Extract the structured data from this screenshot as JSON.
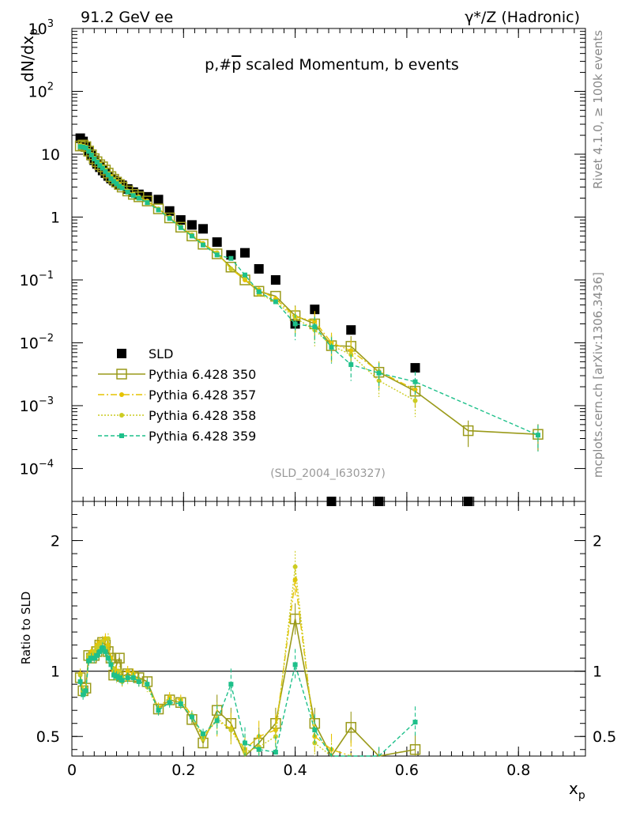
{
  "header": {
    "left": "91.2 GeV ee",
    "right": "γ*/Z (Hadronic)"
  },
  "side_labels": {
    "top": "Rivet 4.1.0, ≥ 100k events",
    "bottom": "mcplots.cern.ch [arXiv:1306.3436]"
  },
  "colors": {
    "SLD": "#000000",
    "p350": "#9a9a1a",
    "p357": "#e6c300",
    "p358": "#cccc22",
    "p359": "#1ec08a"
  },
  "chart_data": [
    {
      "type": "scatter",
      "panel": "main",
      "title_parts": [
        "p,#",
        "p",
        " scaled Momentum, b events"
      ],
      "ylabel": "dN/dx",
      "ylabel_sub": "p",
      "xlabel": "x",
      "xlabel_sub": "p",
      "yscale": "log",
      "xlim": [
        0,
        0.92
      ],
      "ylim": [
        3e-05,
        1000
      ],
      "xticks": [
        "0",
        "0.2",
        "0.4",
        "0.6",
        "0.8"
      ],
      "xtick_values": [
        0,
        0.2,
        0.4,
        0.6,
        0.8
      ],
      "yticks": [
        {
          "base": "10",
          "exp": "3"
        },
        {
          "base": "10",
          "exp": "2"
        },
        {
          "base": "10",
          "exp": ""
        },
        {
          "base": "1",
          "exp": ""
        },
        {
          "base": "10",
          "exp": "−1"
        },
        {
          "base": "10",
          "exp": "−2"
        },
        {
          "base": "10",
          "exp": "−3"
        },
        {
          "base": "10",
          "exp": "−4"
        }
      ],
      "ytick_values": [
        1000,
        100,
        10,
        1,
        0.1,
        0.01,
        0.001,
        0.0001
      ],
      "annotation": "(SLD_2004_I630327)",
      "legend": [
        "SLD",
        "Pythia 6.428 350",
        "Pythia 6.428 357",
        "Pythia 6.428 358",
        "Pythia 6.428 359"
      ],
      "legend_position": "lower-left",
      "series": [
        {
          "name": "SLD",
          "style": "data",
          "x": [
            0.015,
            0.02,
            0.025,
            0.03,
            0.035,
            0.04,
            0.045,
            0.05,
            0.055,
            0.06,
            0.065,
            0.07,
            0.075,
            0.08,
            0.085,
            0.09,
            0.1,
            0.11,
            0.12,
            0.135,
            0.155,
            0.175,
            0.195,
            0.215,
            0.235,
            0.26,
            0.285,
            0.31,
            0.335,
            0.365,
            0.4,
            0.435,
            0.465,
            0.5,
            0.55,
            0.615,
            0.71
          ],
          "y": [
            18,
            16,
            13,
            11,
            9.5,
            8,
            7,
            6.2,
            5.5,
            5,
            4.5,
            4.1,
            3.8,
            3.6,
            3.3,
            3.2,
            2.8,
            2.5,
            2.3,
            2.1,
            1.9,
            1.25,
            0.9,
            0.75,
            0.65,
            0.4,
            0.25,
            0.27,
            0.15,
            0.1,
            0.02,
            0.034,
            3e-05,
            0.016,
            3e-05,
            0.004,
            3e-05
          ]
        },
        {
          "name": "Pythia 6.428 350",
          "style": "solid",
          "x": [
            0.015,
            0.02,
            0.025,
            0.03,
            0.035,
            0.04,
            0.045,
            0.05,
            0.055,
            0.06,
            0.065,
            0.07,
            0.075,
            0.08,
            0.085,
            0.09,
            0.1,
            0.11,
            0.12,
            0.135,
            0.155,
            0.175,
            0.195,
            0.215,
            0.235,
            0.26,
            0.285,
            0.31,
            0.335,
            0.365,
            0.4,
            0.435,
            0.465,
            0.5,
            0.55,
            0.615,
            0.71,
            0.835
          ],
          "y": [
            13.5,
            14,
            13.2,
            11.2,
            9.8,
            8.5,
            7.6,
            6.8,
            6.3,
            5.6,
            5.0,
            4.4,
            4.0,
            3.6,
            3.3,
            3.0,
            2.6,
            2.3,
            2.1,
            1.8,
            1.35,
            0.97,
            0.69,
            0.5,
            0.37,
            0.26,
            0.16,
            0.1,
            0.066,
            0.055,
            0.027,
            0.02,
            0.009,
            0.0088,
            0.0034,
            0.0017,
            0.0004,
            0.00035
          ]
        },
        {
          "name": "Pythia 6.428 357",
          "style": "dashdot",
          "x": [
            0.015,
            0.02,
            0.025,
            0.03,
            0.035,
            0.04,
            0.045,
            0.05,
            0.055,
            0.06,
            0.065,
            0.07,
            0.075,
            0.08,
            0.085,
            0.09,
            0.1,
            0.11,
            0.12,
            0.135,
            0.155,
            0.175,
            0.195,
            0.215,
            0.235,
            0.26,
            0.285,
            0.31,
            0.335,
            0.365,
            0.4,
            0.435,
            0.465,
            0.5,
            0.55,
            0.615
          ],
          "y": [
            14,
            13.5,
            13,
            11.5,
            10,
            8.7,
            7.8,
            7.0,
            6.3,
            5.6,
            4.9,
            4.4,
            3.9,
            3.6,
            3.3,
            3.0,
            2.6,
            2.3,
            2.1,
            1.8,
            1.35,
            1.0,
            0.7,
            0.52,
            0.38,
            0.27,
            0.15,
            0.1,
            0.07,
            0.05,
            0.026,
            0.022,
            0.01,
            0.0075,
            0.0035,
            0.0018
          ]
        },
        {
          "name": "Pythia 6.428 358",
          "style": "dotted",
          "x": [
            0.015,
            0.02,
            0.025,
            0.03,
            0.035,
            0.04,
            0.045,
            0.05,
            0.055,
            0.06,
            0.065,
            0.07,
            0.075,
            0.08,
            0.085,
            0.09,
            0.1,
            0.11,
            0.12,
            0.135,
            0.155,
            0.175,
            0.195,
            0.215,
            0.235,
            0.26,
            0.285,
            0.31,
            0.335,
            0.365,
            0.4,
            0.435,
            0.465,
            0.5,
            0.55,
            0.615
          ],
          "y": [
            13.8,
            13.2,
            12.8,
            11.4,
            9.9,
            8.6,
            7.7,
            6.9,
            6.3,
            5.6,
            4.9,
            4.3,
            3.9,
            3.5,
            3.2,
            3.0,
            2.6,
            2.3,
            2.05,
            1.75,
            1.3,
            0.97,
            0.7,
            0.5,
            0.36,
            0.27,
            0.15,
            0.11,
            0.06,
            0.045,
            0.025,
            0.016,
            0.009,
            0.0065,
            0.0025,
            0.0012
          ]
        },
        {
          "name": "Pythia 6.428 359",
          "style": "dashed",
          "x": [
            0.015,
            0.02,
            0.025,
            0.03,
            0.035,
            0.04,
            0.045,
            0.05,
            0.055,
            0.06,
            0.065,
            0.07,
            0.075,
            0.08,
            0.085,
            0.09,
            0.1,
            0.11,
            0.12,
            0.135,
            0.155,
            0.175,
            0.195,
            0.215,
            0.235,
            0.26,
            0.285,
            0.31,
            0.335,
            0.365,
            0.4,
            0.435,
            0.465,
            0.5,
            0.55,
            0.615,
            0.835
          ],
          "y": [
            13.2,
            13.0,
            12.6,
            11.1,
            9.7,
            8.4,
            7.5,
            6.6,
            6.0,
            5.3,
            4.7,
            4.1,
            3.7,
            3.4,
            3.1,
            2.9,
            2.5,
            2.2,
            2.0,
            1.7,
            1.3,
            0.95,
            0.68,
            0.5,
            0.36,
            0.25,
            0.22,
            0.12,
            0.065,
            0.045,
            0.02,
            0.018,
            0.0085,
            0.0045,
            0.0033,
            0.0024,
            0.00034
          ]
        }
      ]
    },
    {
      "type": "line",
      "panel": "ratio",
      "ylabel": "Ratio to SLD",
      "xlim": [
        0,
        0.92
      ],
      "ylim": [
        0.35,
        2.3
      ],
      "yticks": [
        "0.5",
        "1",
        "2"
      ],
      "ytick_values": [
        0.5,
        1,
        2
      ],
      "reference_line": 1,
      "series": [
        {
          "name": "Pythia 6.428 350",
          "x": [
            0.015,
            0.02,
            0.025,
            0.03,
            0.035,
            0.04,
            0.045,
            0.05,
            0.055,
            0.06,
            0.065,
            0.07,
            0.075,
            0.08,
            0.085,
            0.09,
            0.1,
            0.11,
            0.12,
            0.135,
            0.155,
            0.175,
            0.195,
            0.215,
            0.235,
            0.26,
            0.285,
            0.31,
            0.335,
            0.365,
            0.4,
            0.435,
            0.465,
            0.5,
            0.55,
            0.615
          ],
          "y": [
            0.95,
            0.85,
            0.87,
            1.12,
            1.1,
            1.12,
            1.15,
            1.2,
            1.22,
            1.2,
            1.15,
            1.1,
            0.97,
            1.05,
            1.1,
            0.96,
            0.98,
            0.96,
            0.95,
            0.92,
            0.71,
            0.78,
            0.76,
            0.63,
            0.45,
            0.7,
            0.6,
            0.35,
            0.45,
            0.6,
            1.4,
            0.6,
            0.3,
            0.57,
            0.3,
            0.4
          ]
        },
        {
          "name": "Pythia 6.428 357",
          "x": [
            0.015,
            0.02,
            0.025,
            0.03,
            0.035,
            0.04,
            0.045,
            0.05,
            0.055,
            0.06,
            0.065,
            0.07,
            0.075,
            0.08,
            0.085,
            0.09,
            0.1,
            0.11,
            0.12,
            0.135,
            0.155,
            0.175,
            0.195,
            0.215,
            0.235,
            0.26,
            0.285,
            0.31,
            0.335,
            0.365,
            0.4,
            0.435,
            0.465,
            0.5
          ],
          "y": [
            0.98,
            0.84,
            0.86,
            1.1,
            1.15,
            1.13,
            1.2,
            1.22,
            1.18,
            1.25,
            1.2,
            1.1,
            1.0,
            1.0,
            0.96,
            0.92,
            1.0,
            0.98,
            0.92,
            0.9,
            0.72,
            0.8,
            0.78,
            0.66,
            0.5,
            0.62,
            0.56,
            0.4,
            0.5,
            0.55,
            1.7,
            0.5,
            0.4,
            0.35
          ]
        },
        {
          "name": "Pythia 6.428 358",
          "x": [
            0.015,
            0.02,
            0.025,
            0.03,
            0.035,
            0.04,
            0.045,
            0.05,
            0.055,
            0.06,
            0.065,
            0.07,
            0.075,
            0.08,
            0.085,
            0.09,
            0.1,
            0.11,
            0.12,
            0.135,
            0.155,
            0.175,
            0.195,
            0.215,
            0.235,
            0.26,
            0.285,
            0.31,
            0.335,
            0.365,
            0.4,
            0.435,
            0.465
          ],
          "y": [
            0.97,
            0.85,
            0.85,
            1.12,
            1.1,
            1.15,
            1.18,
            1.2,
            1.23,
            1.18,
            1.25,
            1.05,
            1.02,
            0.95,
            1.0,
            0.95,
            0.94,
            0.96,
            0.93,
            0.88,
            0.7,
            0.78,
            0.76,
            0.65,
            0.48,
            0.64,
            0.55,
            0.38,
            0.42,
            0.5,
            1.8,
            0.45,
            0.35
          ]
        },
        {
          "name": "Pythia 6.428 359",
          "x": [
            0.015,
            0.02,
            0.025,
            0.03,
            0.035,
            0.04,
            0.045,
            0.05,
            0.055,
            0.06,
            0.065,
            0.07,
            0.075,
            0.08,
            0.085,
            0.09,
            0.1,
            0.11,
            0.12,
            0.135,
            0.155,
            0.175,
            0.195,
            0.215,
            0.235,
            0.26,
            0.285,
            0.31,
            0.335,
            0.365,
            0.4,
            0.435,
            0.465,
            0.55,
            0.615
          ],
          "y": [
            0.92,
            0.82,
            0.85,
            1.08,
            1.1,
            1.1,
            1.12,
            1.15,
            1.18,
            1.15,
            1.1,
            1.05,
            0.97,
            0.96,
            0.95,
            0.93,
            0.95,
            0.95,
            0.92,
            0.9,
            0.7,
            0.76,
            0.75,
            0.65,
            0.52,
            0.62,
            0.9,
            0.45,
            0.4,
            0.38,
            1.05,
            0.55,
            0.3,
            0.3,
            0.61
          ]
        }
      ]
    }
  ]
}
